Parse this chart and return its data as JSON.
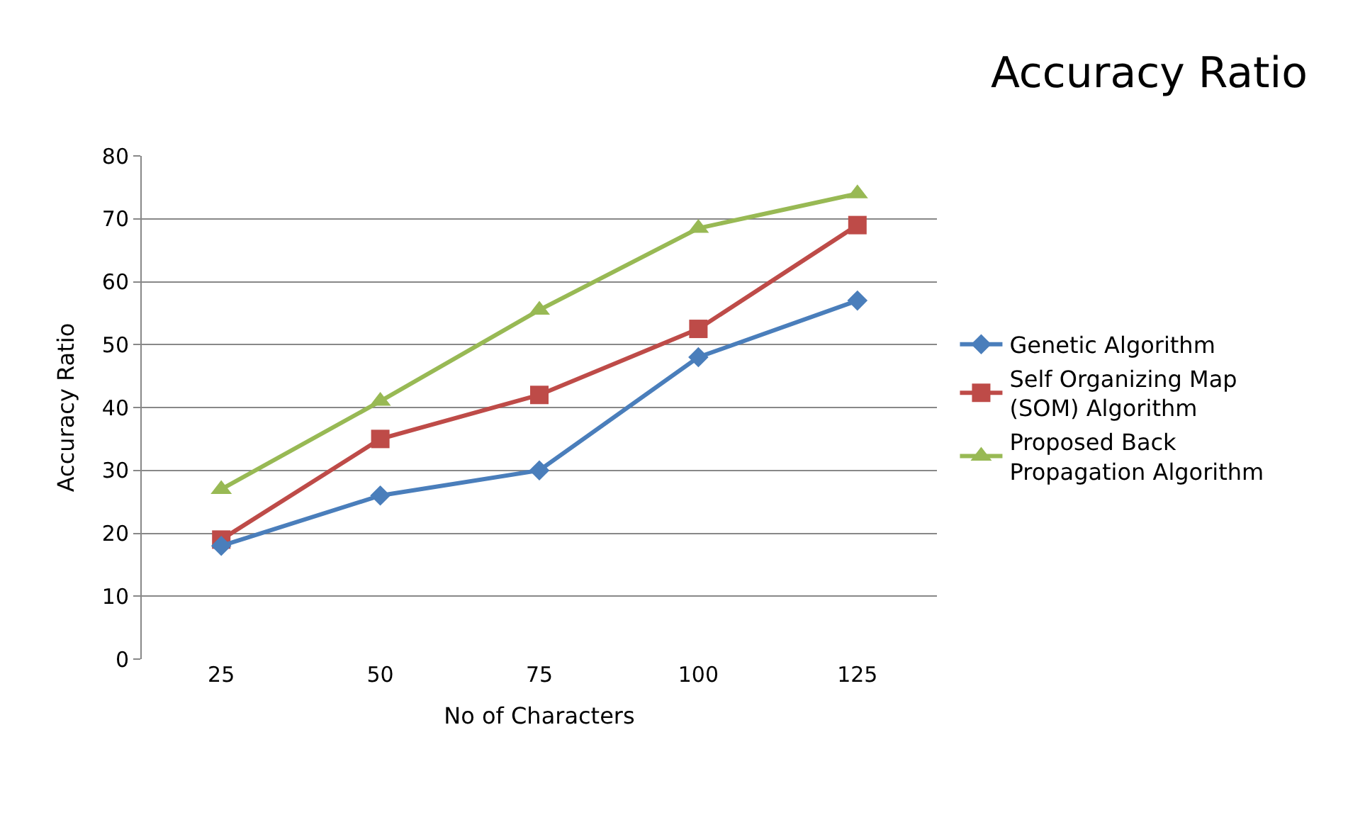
{
  "chart_data": {
    "type": "line",
    "title": "Accuracy Ratio",
    "xlabel": "No of Characters",
    "ylabel": "Accuracy Ratio",
    "categories": [
      "25",
      "50",
      "75",
      "100",
      "125"
    ],
    "series": [
      {
        "name": "Genetic Algorithm",
        "color": "#4a7ebb",
        "marker": "diamond",
        "values": [
          18,
          26,
          30,
          48,
          57
        ]
      },
      {
        "name": "Self Organizing Map (SOM) Algorithm",
        "color": "#be4b48",
        "marker": "square",
        "values": [
          19,
          35,
          42,
          52.5,
          69
        ]
      },
      {
        "name": "Proposed Back Propagation Algorithm",
        "color": "#98b954",
        "marker": "triangle",
        "values": [
          27,
          41,
          55.5,
          68.5,
          74
        ]
      }
    ],
    "ylim": [
      0,
      80
    ],
    "yticks": [
      0,
      10,
      20,
      30,
      40,
      50,
      60,
      70,
      80
    ],
    "grid": "y",
    "legend": "right"
  }
}
